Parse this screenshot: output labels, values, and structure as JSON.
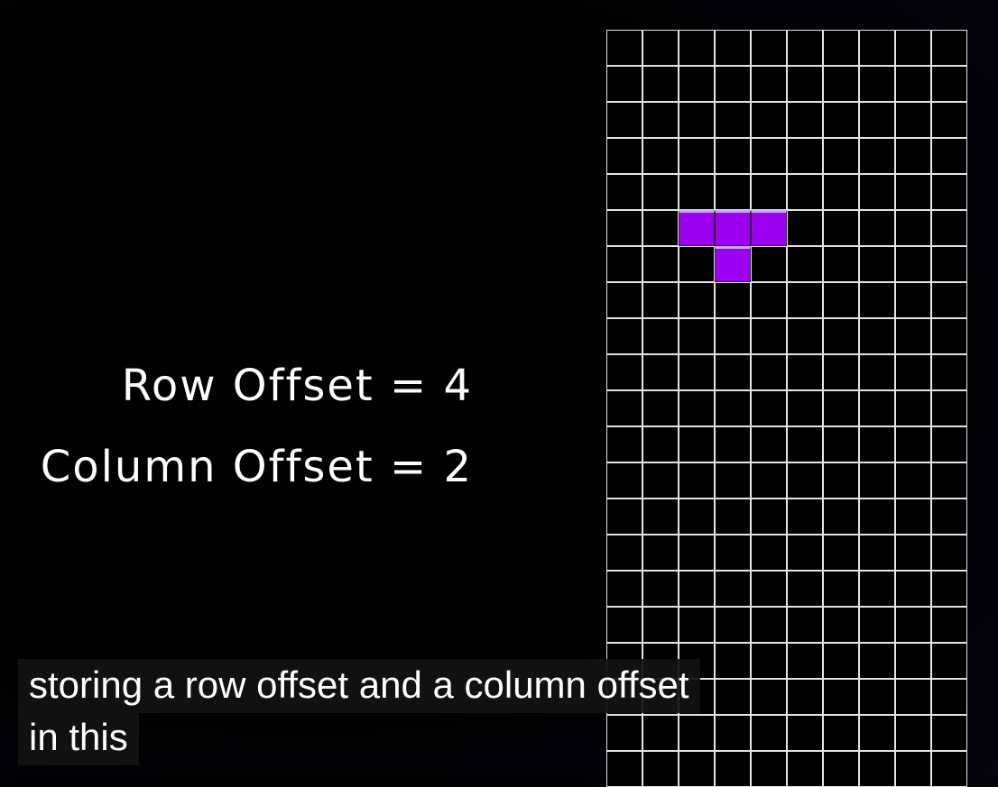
{
  "labels": {
    "row_offset": "Row Offset = 4",
    "column_offset": "Column Offset = 2"
  },
  "board": {
    "columns": 10,
    "rows_visible": 21,
    "grid_line_color": "#e4e4e4",
    "cell_background": "#000000",
    "piece": {
      "type": "T",
      "color": "#9b00f0",
      "cells": [
        [
          5,
          2
        ],
        [
          5,
          3
        ],
        [
          5,
          4
        ],
        [
          6,
          3
        ]
      ]
    }
  },
  "caption": {
    "line1": "storing a row offset and a column offset",
    "line2": "in this"
  }
}
